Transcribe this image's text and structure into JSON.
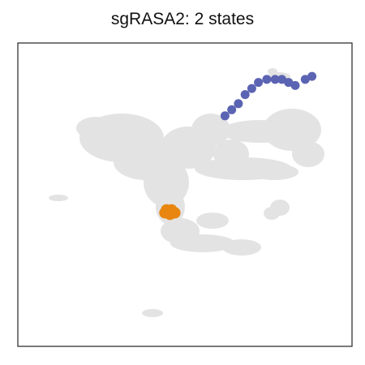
{
  "chart_data": {
    "type": "scatter",
    "title": "sgRASA2: 2 states",
    "xlabel": "",
    "ylabel": "",
    "xticks": [],
    "yticks": [],
    "grid": false,
    "legend": "none",
    "background_points_color": "#e3e3e3",
    "series": [
      {
        "color": "#5b63b3",
        "points": [
          [
            0.62,
            0.24
          ],
          [
            0.64,
            0.22
          ],
          [
            0.66,
            0.2
          ],
          [
            0.68,
            0.17
          ],
          [
            0.7,
            0.15
          ],
          [
            0.72,
            0.13
          ],
          [
            0.745,
            0.12
          ],
          [
            0.77,
            0.12
          ],
          [
            0.79,
            0.12
          ],
          [
            0.81,
            0.13
          ],
          [
            0.83,
            0.14
          ],
          [
            0.86,
            0.12
          ],
          [
            0.88,
            0.11
          ]
        ]
      },
      {
        "color": "#e8860f",
        "points": [
          [
            0.44,
            0.56
          ],
          [
            0.455,
            0.565
          ],
          [
            0.47,
            0.56
          ],
          [
            0.46,
            0.55
          ],
          [
            0.445,
            0.55
          ]
        ]
      }
    ]
  }
}
